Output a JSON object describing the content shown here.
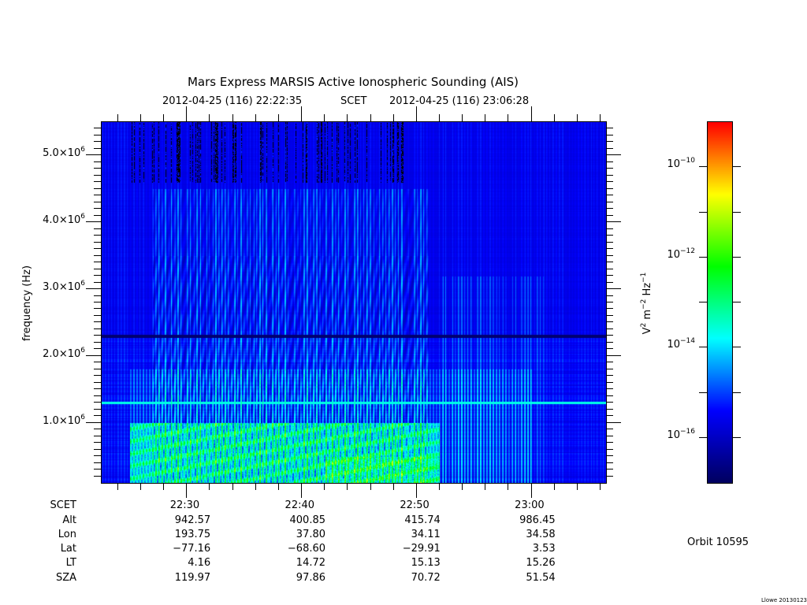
{
  "chart_data": {
    "type": "heatmap",
    "title": "Mars Express MARSIS Active Ionospheric Sounding (AIS)",
    "subtitle": {
      "start": "2012-04-25 (116) 22:22:35",
      "label": "SCET",
      "end": "2012-04-25 (116) 23:06:28"
    },
    "ylabel": "frequency (Hz)",
    "ylim_hz": [
      100000,
      5500000
    ],
    "xlim_minutes_after_2200": [
      22.58,
      66.47
    ],
    "y_ticks": [
      {
        "value": 5000000,
        "mant": "5.0×10",
        "exp": "6"
      },
      {
        "value": 4000000,
        "mant": "4.0×10",
        "exp": "6"
      },
      {
        "value": 3000000,
        "mant": "3.0×10",
        "exp": "6"
      },
      {
        "value": 2000000,
        "mant": "2.0×10",
        "exp": "6"
      },
      {
        "value": 1000000,
        "mant": "1.0×10",
        "exp": "6"
      }
    ],
    "colorbar": {
      "label": {
        "base1": "V",
        "e1": "2",
        "base2": " m",
        "e2": "−2",
        "base3": " Hz",
        "e3": "−1"
      },
      "log_range": [
        -17,
        -9
      ],
      "ticks": [
        {
          "value": -10,
          "base": "10",
          "exp": "−10"
        },
        {
          "value": -12,
          "base": "10",
          "exp": "−12"
        },
        {
          "value": -14,
          "base": "10",
          "exp": "−14"
        },
        {
          "value": -16,
          "base": "10",
          "exp": "−16"
        }
      ],
      "colors": [
        "#000060",
        "#0000ff",
        "#00ffff",
        "#00ff00",
        "#ffff00",
        "#ff0000"
      ]
    },
    "ephemeris": {
      "row_labels": [
        "SCET",
        "Alt",
        "Lon",
        "Lat",
        "LT",
        "SZA"
      ],
      "columns": [
        {
          "minute": 30,
          "values": [
            "22:30",
            "942.57",
            "193.75",
            "−77.16",
            "4.16",
            "119.97"
          ]
        },
        {
          "minute": 40,
          "values": [
            "22:40",
            "400.85",
            "37.80",
            "−68.60",
            "14.72",
            "97.86"
          ]
        },
        {
          "minute": 50,
          "values": [
            "22:50",
            "415.74",
            "34.11",
            "−29.91",
            "15.13",
            "70.72"
          ]
        },
        {
          "minute": 60,
          "values": [
            "23:00",
            "986.45",
            "34.58",
            "3.53",
            "15.26",
            "51.54"
          ]
        }
      ]
    },
    "features": {
      "dark_band_hz": 2300000,
      "bright_line_hz": 1300000
    }
  },
  "orbit": "Orbit 10595",
  "footer": "Llowe 20130123"
}
